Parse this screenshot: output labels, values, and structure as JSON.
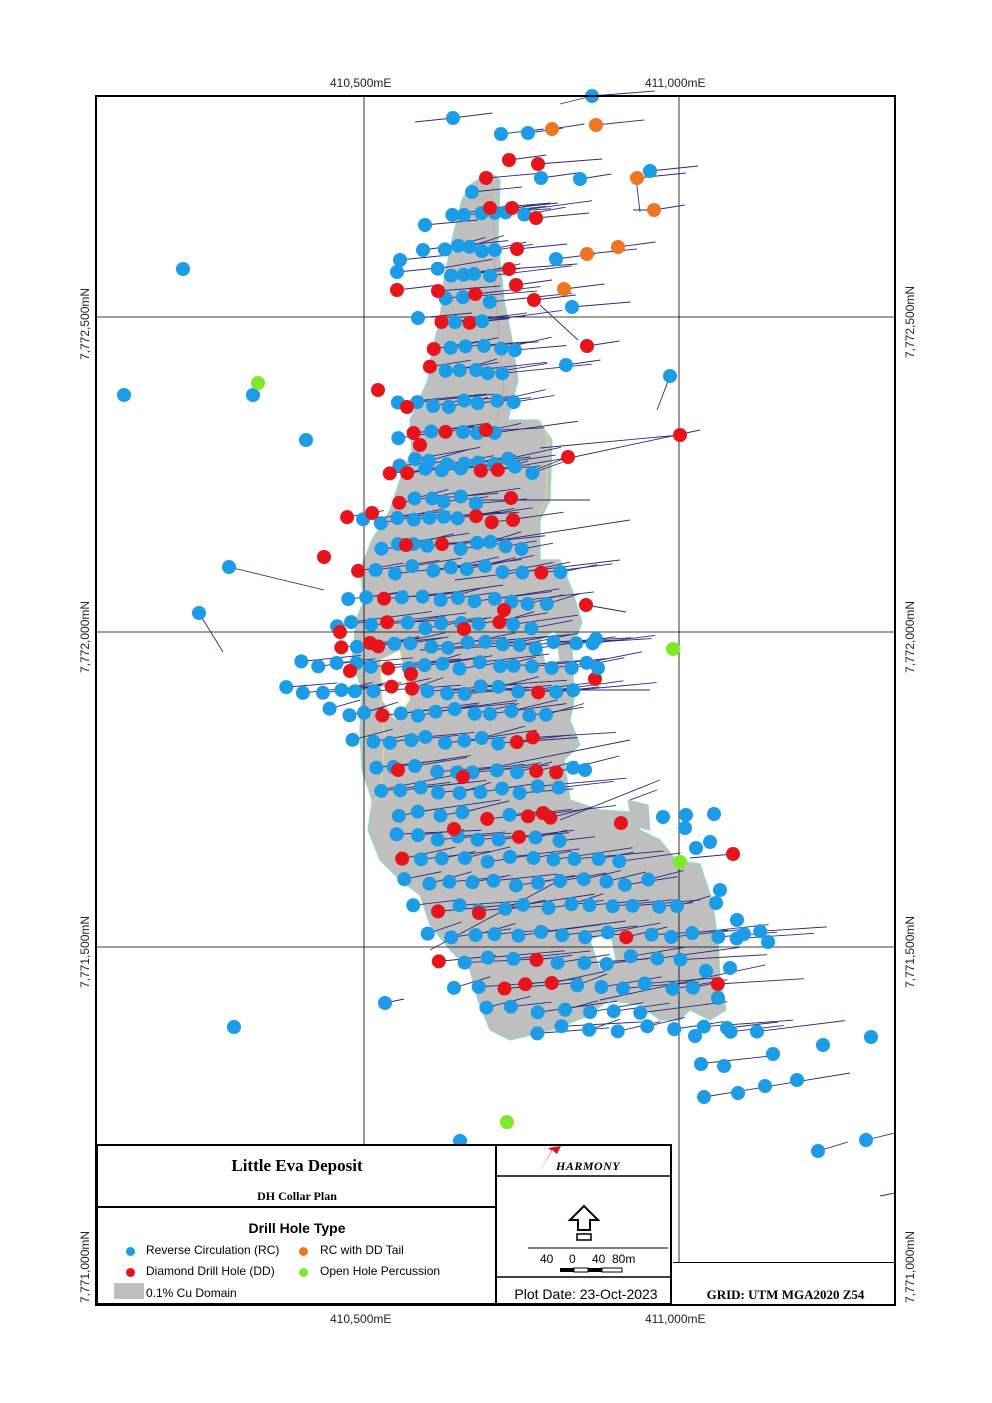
{
  "title_block": {
    "deposit_title": "Little Eva Deposit",
    "plan_title": "DH Collar Plan",
    "legend_heading": "Drill Hole Type",
    "legend": [
      {
        "label": "Reverse Circulation (RC)",
        "color": "#1c9be6"
      },
      {
        "label": "RC with DD Tail",
        "color": "#f07520"
      },
      {
        "label": "Diamond Drill Hole (DD)",
        "color": "#e8141c"
      },
      {
        "label": "Open Hole Percussion",
        "color": "#7ee82a"
      },
      {
        "label": "0.1% Cu Domain",
        "color": "#bfbfbf"
      }
    ],
    "logo_text": "HARMONY",
    "scale_labels": [
      "40",
      "0",
      "40",
      "80m"
    ],
    "plot_date": "Plot Date: 23-Oct-2023",
    "grid": "GRID: UTM MGA2020 Z54"
  },
  "grid_labels": {
    "easting_1": "410,500mE",
    "easting_2": "411,000mE",
    "northing_1": "7,772,500mN",
    "northing_2": "7,772,000mN",
    "northing_3": "7,771,500mN",
    "northing_4": "7,771,000mN"
  },
  "colors": {
    "rc": "#1c9be6",
    "dd": "#e8141c",
    "rcdd": "#f07520",
    "ohp": "#7ee82a",
    "domain": "#bfbfbf",
    "trace": "#2b2b7a"
  }
}
